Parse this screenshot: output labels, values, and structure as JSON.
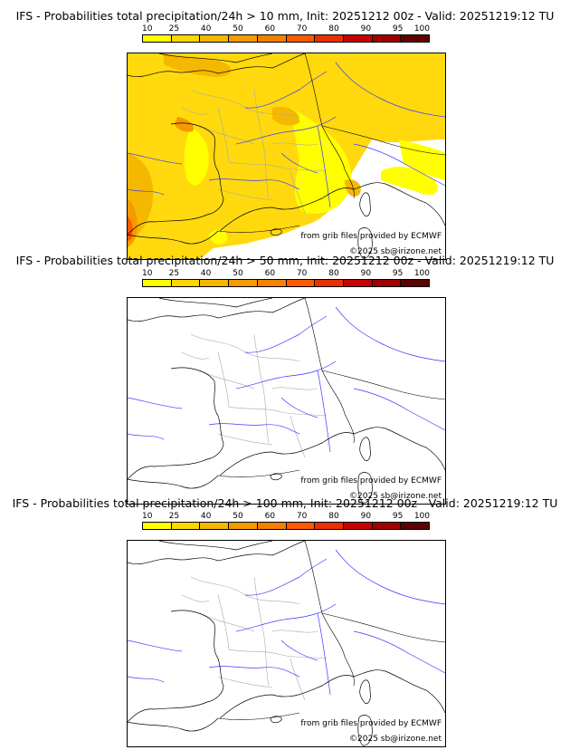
{
  "palette": [
    "#ffff00",
    "#ffd700",
    "#f5b800",
    "#f59a00",
    "#f58000",
    "#ff5a00",
    "#e83000",
    "#c80000",
    "#a00000",
    "#600000"
  ],
  "scale_ticks": [
    "10",
    "25",
    "40",
    "50",
    "60",
    "70",
    "80",
    "90",
    "95",
    "100"
  ],
  "panels": [
    {
      "title": "IFS - Probabilities total precipitation/24h > 10 mm, Init: 20251212 00z - Valid: 20251219:12 TU",
      "credit_source": "from grib files provided by ECMWF",
      "credit_copyright": "©2025 sb@irizone.net",
      "filled": true
    },
    {
      "title": "IFS - Probabilities total precipitation/24h > 50 mm, Init: 20251212 00z - Valid: 20251219:12 TU",
      "credit_source": "from grib files provided by ECMWF",
      "credit_copyright": "©2025 sb@irizone.net",
      "filled": false
    },
    {
      "title": "IFS - Probabilities total precipitation/24h > 100 mm, Init: 20251212 00z - Valid: 20251219:12 TU",
      "credit_source": "from grib files provided by ECMWF",
      "credit_copyright": "©2025 sb@irizone.net",
      "filled": false
    }
  ],
  "colors": {
    "coast": "#000000",
    "rivers": "#3a3aff",
    "regions": "#a8a8a8"
  }
}
